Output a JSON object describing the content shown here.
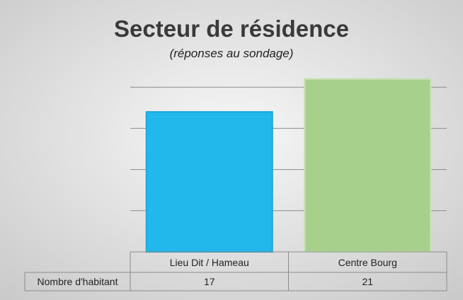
{
  "chart_data": {
    "type": "bar",
    "title": "Secteur de résidence",
    "subtitle": "(réponses au sondage)",
    "categories": [
      "Lieu Dit / Hameau",
      "Centre Bourg"
    ],
    "series": [
      {
        "name": "Nombre d'habitant",
        "values": [
          17,
          21
        ]
      }
    ],
    "values": [
      17,
      21
    ],
    "ylim": [
      0,
      25
    ],
    "grid": true,
    "legend": "data-table",
    "colors": {
      "bars": [
        "#22b8ec",
        "#a8d08d"
      ],
      "bar_strokes": [
        "#1aa6d8",
        "#c9e2b6"
      ],
      "gridline": "#8c8c8c",
      "table_border": "#8c8c8c",
      "background_light": "#f7f7f7",
      "background_dark": "#c9c9c9"
    }
  }
}
